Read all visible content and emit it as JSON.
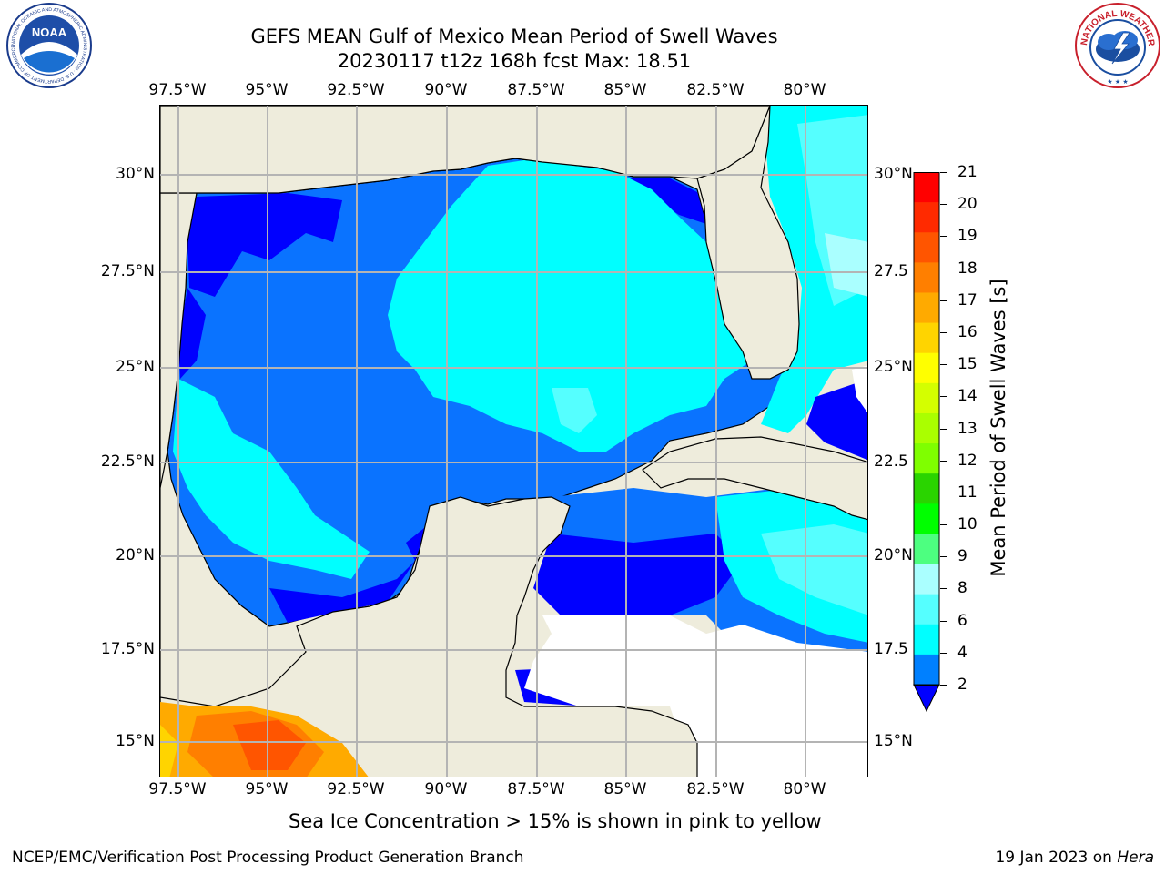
{
  "title_line1": "GEFS MEAN Gulf of Mexico Mean Period of Swell Waves",
  "title_line2": "20230117 t12z 168h fcst   Max: 18.51",
  "lon_labels": [
    "97.5°W",
    "95°W",
    "92.5°W",
    "90°W",
    "87.5°W",
    "85°W",
    "82.5°W",
    "80°W"
  ],
  "lat_labels_left": [
    "30°N",
    "27.5°N",
    "25°N",
    "22.5°N",
    "20°N",
    "17.5°N",
    "15°N"
  ],
  "lat_labels_right": [
    "30°N",
    "27.5",
    "25°N",
    "22.5",
    "20°N",
    "17.5",
    "15°N"
  ],
  "colorbar": {
    "label": "Mean Period of Swell Waves [s]",
    "ticks": [
      "21",
      "20",
      "19",
      "18",
      "17",
      "16",
      "15",
      "14",
      "13",
      "12",
      "11",
      "10",
      "9",
      "8",
      "6",
      "4",
      "2"
    ],
    "colors": [
      "#ff0000",
      "#ff2a00",
      "#ff5500",
      "#ff7f00",
      "#ffaa00",
      "#ffd400",
      "#ffff00",
      "#d4ff00",
      "#aaff00",
      "#7fff00",
      "#2ad400",
      "#00ff00",
      "#4dff80",
      "#aaffff",
      "#55ffff",
      "#00ffff",
      "#0080ff",
      "#0000ff"
    ]
  },
  "note": "Sea Ice Concentration > 15% is shown in pink to yellow",
  "footer_left": "NCEP/EMC/Verification Post Processing Product Generation Branch",
  "footer_date": "19 Jan 2023 on ",
  "footer_host": "Hera",
  "logos": {
    "noaa_text": "NOAA",
    "noaa_ring_text": "NATIONAL OCEANIC AND ATMOSPHERIC ADMINISTRATION · U.S. DEPARTMENT OF COMMERCE",
    "nws_ring_text": "NATIONAL WEATHER SERVICE"
  },
  "map_colors": {
    "land": "#eeecdc",
    "ocean_deep_blue": "#0000ff",
    "ocean_blue": "#0a73ff",
    "cyan": "#00ffff",
    "light_cyan": "#55ffff",
    "pale_cyan": "#aaffff",
    "gridline": "#b4b4b4"
  }
}
